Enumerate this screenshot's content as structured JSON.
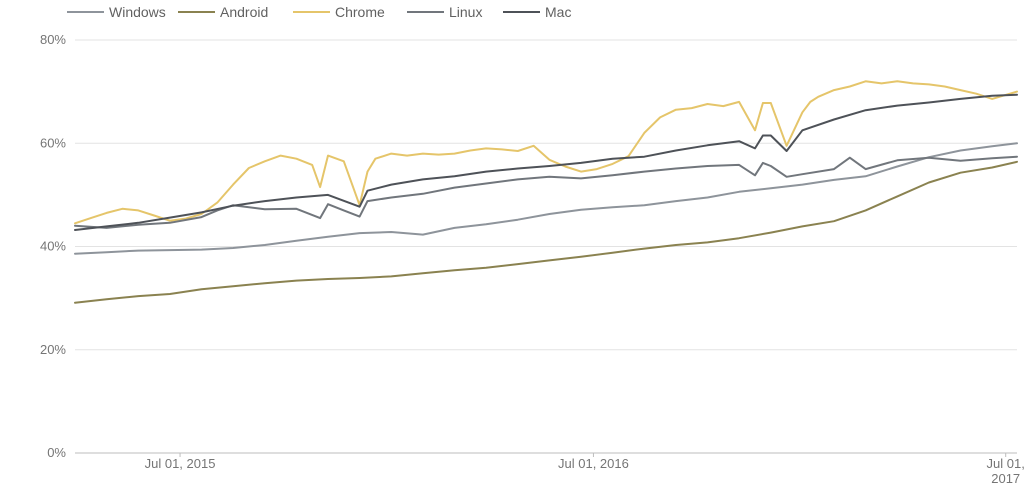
{
  "chart_data": {
    "type": "line",
    "title": "",
    "xlabel": "",
    "ylabel": "",
    "ylim": [
      0,
      80
    ],
    "yticks": [
      0,
      20,
      40,
      60,
      80
    ],
    "ytick_labels": [
      "0%",
      "20%",
      "40%",
      "60%",
      "80%"
    ],
    "xtick_labels": [
      {
        "date": "2015-07-01",
        "lines": [
          "Jul 01, 2015"
        ]
      },
      {
        "date": "2016-07-01",
        "lines": [
          "Jul 01, 2016"
        ]
      },
      {
        "date": "2017-07-01",
        "lines": [
          "Jul 01,",
          "2017"
        ]
      }
    ],
    "xlim": [
      "2015-03-30",
      "2017-07-11"
    ],
    "grid": "horizontal",
    "legend_position": "top",
    "series": [
      {
        "name": "Windows",
        "color": "#8e949b",
        "x": [
          "2015-03-30",
          "2015-04-27",
          "2015-05-25",
          "2015-06-22",
          "2015-07-20",
          "2015-08-17",
          "2015-09-14",
          "2015-10-12",
          "2015-11-09",
          "2015-12-07",
          "2016-01-04",
          "2016-02-01",
          "2016-02-29",
          "2016-03-28",
          "2016-04-25",
          "2016-05-23",
          "2016-06-20",
          "2016-07-18",
          "2016-08-15",
          "2016-09-12",
          "2016-10-10",
          "2016-11-07",
          "2016-12-05",
          "2017-01-02",
          "2017-01-30",
          "2017-02-27",
          "2017-03-27",
          "2017-04-24",
          "2017-05-22",
          "2017-06-19",
          "2017-07-11"
        ],
        "y": [
          38.6,
          38.9,
          39.2,
          39.3,
          39.4,
          39.7,
          40.3,
          41.1,
          41.9,
          42.6,
          42.8,
          42.3,
          43.6,
          44.3,
          45.2,
          46.3,
          47.1,
          47.6,
          48.0,
          48.8,
          49.5,
          50.6,
          51.3,
          52.0,
          52.9,
          53.6,
          55.5,
          57.3,
          58.6,
          59.4,
          60.0
        ]
      },
      {
        "name": "Android",
        "color": "#8a8250",
        "x": [
          "2015-03-30",
          "2015-04-27",
          "2015-05-25",
          "2015-06-22",
          "2015-07-20",
          "2015-08-17",
          "2015-09-14",
          "2015-10-12",
          "2015-11-09",
          "2015-12-07",
          "2016-01-04",
          "2016-02-01",
          "2016-02-29",
          "2016-03-28",
          "2016-04-25",
          "2016-05-23",
          "2016-06-20",
          "2016-07-18",
          "2016-08-15",
          "2016-09-12",
          "2016-10-10",
          "2016-11-07",
          "2016-12-05",
          "2017-01-02",
          "2017-01-30",
          "2017-02-27",
          "2017-03-27",
          "2017-04-24",
          "2017-05-22",
          "2017-06-19",
          "2017-07-11"
        ],
        "y": [
          29.1,
          29.8,
          30.4,
          30.8,
          31.7,
          32.3,
          32.9,
          33.4,
          33.7,
          33.9,
          34.2,
          34.8,
          35.4,
          35.9,
          36.6,
          37.3,
          38.0,
          38.8,
          39.6,
          40.3,
          40.8,
          41.6,
          42.7,
          43.9,
          44.9,
          47.0,
          49.7,
          52.4,
          54.3,
          55.3,
          56.4
        ]
      },
      {
        "name": "Chrome",
        "color": "#e5c56a",
        "x": [
          "2015-03-30",
          "2015-04-13",
          "2015-04-27",
          "2015-05-11",
          "2015-05-25",
          "2015-06-08",
          "2015-06-22",
          "2015-07-06",
          "2015-07-20",
          "2015-08-03",
          "2015-08-17",
          "2015-08-31",
          "2015-09-14",
          "2015-09-28",
          "2015-10-12",
          "2015-10-26",
          "2015-11-02",
          "2015-11-09",
          "2015-11-23",
          "2015-12-07",
          "2015-12-14",
          "2015-12-21",
          "2016-01-04",
          "2016-01-18",
          "2016-02-01",
          "2016-02-15",
          "2016-02-29",
          "2016-03-14",
          "2016-03-28",
          "2016-04-11",
          "2016-04-25",
          "2016-05-09",
          "2016-05-23",
          "2016-06-06",
          "2016-06-20",
          "2016-07-04",
          "2016-07-18",
          "2016-08-01",
          "2016-08-15",
          "2016-08-29",
          "2016-09-12",
          "2016-09-26",
          "2016-10-10",
          "2016-10-24",
          "2016-11-07",
          "2016-11-21",
          "2016-11-28",
          "2016-12-05",
          "2016-12-19",
          "2017-01-02",
          "2017-01-09",
          "2017-01-16",
          "2017-01-30",
          "2017-02-13",
          "2017-02-27",
          "2017-03-13",
          "2017-03-27",
          "2017-04-10",
          "2017-04-24",
          "2017-05-08",
          "2017-05-22",
          "2017-06-05",
          "2017-06-19",
          "2017-07-11"
        ],
        "y": [
          44.5,
          45.5,
          46.5,
          47.3,
          47.0,
          46.0,
          45.0,
          45.4,
          46.3,
          48.5,
          52.0,
          55.2,
          56.5,
          57.6,
          57.0,
          55.8,
          51.5,
          57.6,
          56.5,
          48.0,
          54.5,
          57.0,
          58.0,
          57.6,
          58.0,
          57.8,
          58.0,
          58.6,
          59.0,
          58.8,
          58.5,
          59.5,
          56.8,
          55.5,
          54.5,
          55.0,
          56.0,
          57.5,
          62.0,
          65.0,
          66.5,
          66.8,
          67.6,
          67.2,
          68.0,
          62.5,
          67.8,
          67.8,
          59.5,
          66.0,
          68.0,
          69.0,
          70.3,
          71.0,
          72.0,
          71.6,
          72.0,
          71.6,
          71.4,
          71.0,
          70.3,
          69.6,
          68.6,
          70.0
        ]
      },
      {
        "name": "Linux",
        "color": "#71767c",
        "x": [
          "2015-03-30",
          "2015-04-27",
          "2015-05-25",
          "2015-06-22",
          "2015-07-20",
          "2015-08-03",
          "2015-08-17",
          "2015-09-14",
          "2015-10-12",
          "2015-11-02",
          "2015-11-09",
          "2015-11-23",
          "2015-12-07",
          "2015-12-14",
          "2016-01-04",
          "2016-02-01",
          "2016-02-29",
          "2016-03-28",
          "2016-04-25",
          "2016-05-23",
          "2016-06-20",
          "2016-07-18",
          "2016-08-15",
          "2016-09-12",
          "2016-10-10",
          "2016-11-07",
          "2016-11-21",
          "2016-11-28",
          "2016-12-05",
          "2016-12-19",
          "2017-01-02",
          "2017-01-30",
          "2017-02-13",
          "2017-02-27",
          "2017-03-27",
          "2017-04-24",
          "2017-05-22",
          "2017-06-19",
          "2017-07-11"
        ],
        "y": [
          44.0,
          43.6,
          44.2,
          44.6,
          45.7,
          47.0,
          48.0,
          47.2,
          47.3,
          45.5,
          48.2,
          47.0,
          45.8,
          48.8,
          49.5,
          50.2,
          51.4,
          52.2,
          53.0,
          53.5,
          53.2,
          53.8,
          54.5,
          55.1,
          55.6,
          55.8,
          53.8,
          56.2,
          55.6,
          53.5,
          54.0,
          55.0,
          57.2,
          55.0,
          56.7,
          57.2,
          56.6,
          57.1,
          57.4
        ]
      },
      {
        "name": "Mac",
        "color": "#4e5258",
        "x": [
          "2015-03-30",
          "2015-04-27",
          "2015-05-25",
          "2015-06-22",
          "2015-07-20",
          "2015-08-17",
          "2015-09-14",
          "2015-10-12",
          "2015-11-09",
          "2015-12-07",
          "2015-12-14",
          "2016-01-04",
          "2016-02-01",
          "2016-02-29",
          "2016-03-28",
          "2016-04-25",
          "2016-05-23",
          "2016-06-20",
          "2016-07-18",
          "2016-08-15",
          "2016-09-12",
          "2016-10-10",
          "2016-11-07",
          "2016-11-21",
          "2016-11-28",
          "2016-12-05",
          "2016-12-19",
          "2017-01-02",
          "2017-01-30",
          "2017-02-27",
          "2017-03-27",
          "2017-04-24",
          "2017-05-22",
          "2017-06-19",
          "2017-07-11"
        ],
        "y": [
          43.2,
          43.9,
          44.6,
          45.6,
          46.6,
          47.9,
          48.8,
          49.5,
          50.0,
          47.7,
          50.8,
          52.0,
          53.0,
          53.6,
          54.5,
          55.1,
          55.6,
          56.2,
          57.0,
          57.4,
          58.6,
          59.6,
          60.4,
          59.0,
          61.5,
          61.5,
          58.5,
          62.5,
          64.6,
          66.4,
          67.3,
          67.9,
          68.6,
          69.2,
          69.4
        ]
      }
    ]
  }
}
